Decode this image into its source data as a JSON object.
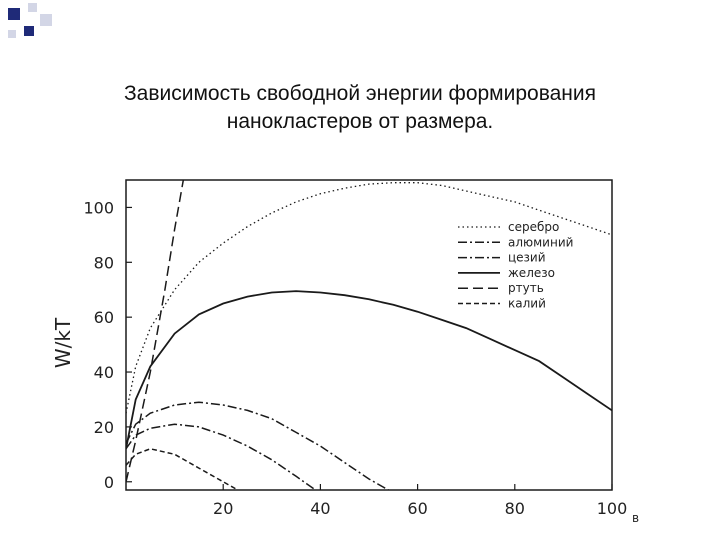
{
  "slide": {
    "title_line1": "Зависимость свободной энергии формирования",
    "title_line2": "нанокластеров от размера."
  },
  "colors": {
    "corner_square_dark": "#1f2a78",
    "corner_square_light": "#d3d6e6",
    "line": "#1a1a1a"
  },
  "chart_data": {
    "type": "line",
    "title": "",
    "xlabel": "",
    "ylabel": "W/kT",
    "xlim": [
      0,
      100
    ],
    "ylim": [
      -3,
      110
    ],
    "x_ticks": [
      20,
      40,
      60,
      80,
      100
    ],
    "y_ticks": [
      0,
      20,
      40,
      60,
      80,
      100
    ],
    "grid": false,
    "legend_position": "top-right",
    "series": [
      {
        "name": "серебро",
        "style": "dotted",
        "x": [
          0,
          2,
          5,
          10,
          15,
          20,
          25,
          30,
          35,
          40,
          45,
          50,
          55,
          60,
          65,
          70,
          75,
          80,
          85,
          90,
          95,
          100
        ],
        "y": [
          25,
          42,
          56,
          70,
          80,
          87,
          93,
          98,
          102,
          105,
          107,
          108.5,
          109,
          109,
          108,
          106,
          104,
          102,
          99,
          96,
          93,
          90
        ]
      },
      {
        "name": "алюминий",
        "style": "dashdot",
        "x": [
          0,
          2,
          5,
          10,
          15,
          20,
          25,
          30,
          35,
          40,
          45,
          50,
          54
        ],
        "y": [
          14,
          21,
          25,
          28,
          29,
          28,
          26,
          23,
          18,
          13,
          7,
          1,
          -3
        ]
      },
      {
        "name": "цезий",
        "style": "dashdot",
        "x": [
          0,
          2,
          5,
          10,
          15,
          20,
          25,
          30,
          35,
          39
        ],
        "y": [
          12,
          17,
          19.5,
          21,
          20,
          17,
          13,
          8,
          2,
          -3
        ]
      },
      {
        "name": "железо",
        "style": "solid",
        "x": [
          0,
          2,
          5,
          10,
          15,
          20,
          25,
          30,
          35,
          40,
          45,
          50,
          55,
          60,
          65,
          70,
          75,
          80,
          85,
          90,
          95,
          100
        ],
        "y": [
          12,
          30,
          42,
          54,
          61,
          65,
          67.5,
          69,
          69.5,
          69,
          68,
          66.5,
          64.5,
          62,
          59,
          56,
          52,
          48,
          44,
          38,
          32,
          26
        ]
      },
      {
        "name": "ртуть",
        "style": "dashed",
        "x": [
          0,
          2,
          5,
          8,
          10,
          12
        ],
        "y": [
          0,
          15,
          40,
          70,
          92,
          112
        ]
      },
      {
        "name": "калий",
        "style": "dashed-short",
        "x": [
          0,
          2,
          5,
          10,
          15,
          20,
          23
        ],
        "y": [
          6,
          10,
          12,
          10,
          5,
          0,
          -3
        ]
      }
    ]
  },
  "page_mark": "в"
}
